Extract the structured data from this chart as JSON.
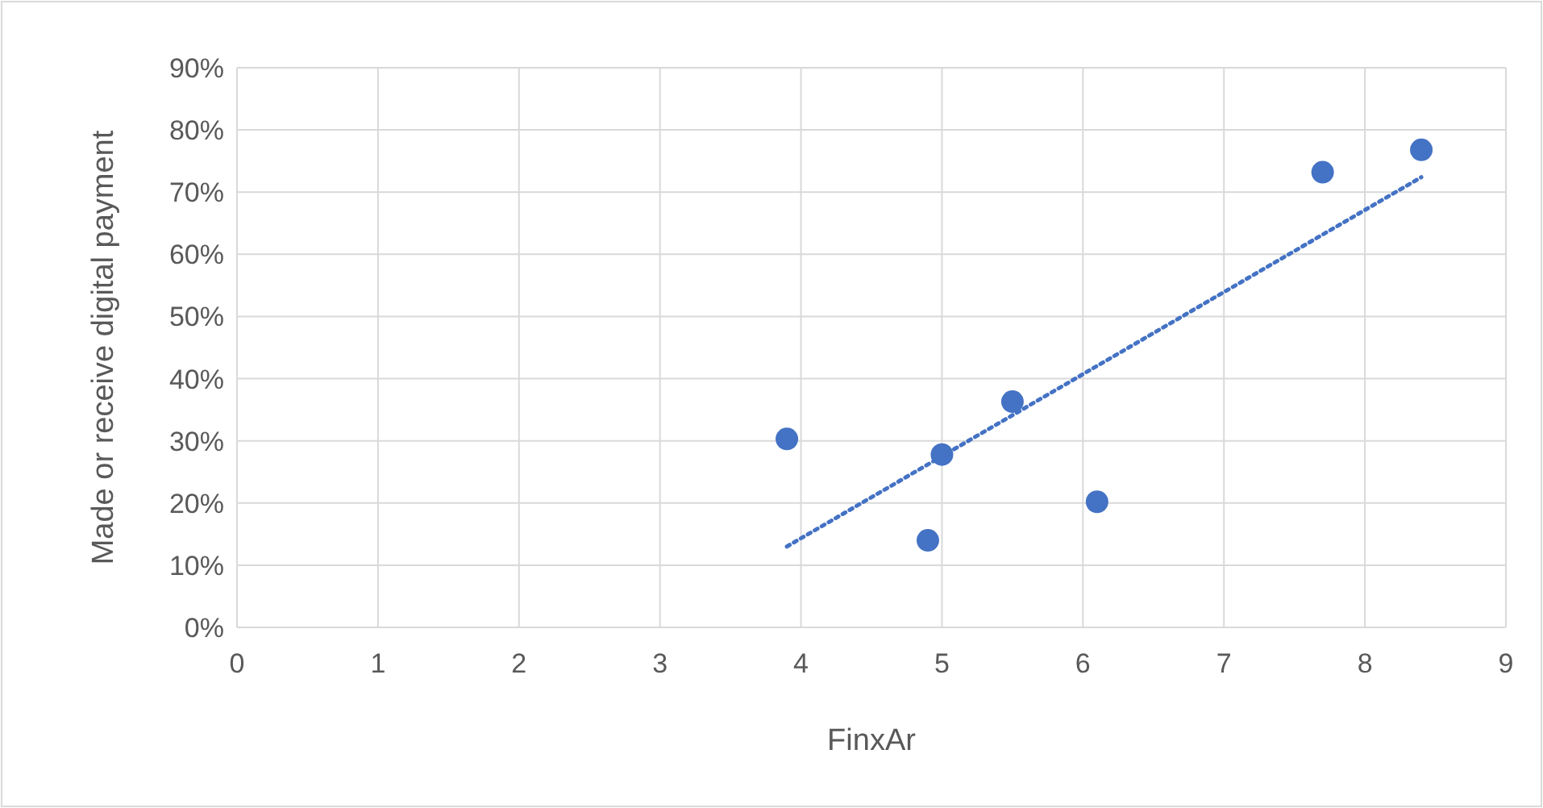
{
  "chart_data": {
    "type": "scatter",
    "xlabel": "FinxAr",
    "ylabel": "Made or receive digital payment",
    "xlim": [
      0,
      9
    ],
    "xticks": [
      0,
      1,
      2,
      3,
      4,
      5,
      6,
      7,
      8,
      9
    ],
    "ylim": [
      0,
      90
    ],
    "yticks": [
      {
        "value": 0,
        "label": "0%"
      },
      {
        "value": 10,
        "label": "10%"
      },
      {
        "value": 20,
        "label": "20%"
      },
      {
        "value": 30,
        "label": "30%"
      },
      {
        "value": 40,
        "label": "40%"
      },
      {
        "value": 50,
        "label": "50%"
      },
      {
        "value": 60,
        "label": "60%"
      },
      {
        "value": 70,
        "label": "70%"
      },
      {
        "value": 80,
        "label": "80%"
      },
      {
        "value": 90,
        "label": "90%"
      }
    ],
    "grid": true,
    "series": [
      {
        "color": "#4472c4",
        "marker": "circle",
        "x": [
          3.9,
          4.9,
          5.0,
          5.5,
          6.1,
          7.7,
          8.4
        ],
        "values": [
          30.3,
          14.0,
          27.8,
          36.3,
          20.2,
          73.2,
          76.8
        ]
      },
      {
        "type": "line",
        "color": "#4472c4",
        "line_style": "dotted",
        "marker": "none",
        "x": [
          3.9,
          8.4
        ],
        "values": [
          13.0,
          72.4
        ]
      }
    ]
  }
}
